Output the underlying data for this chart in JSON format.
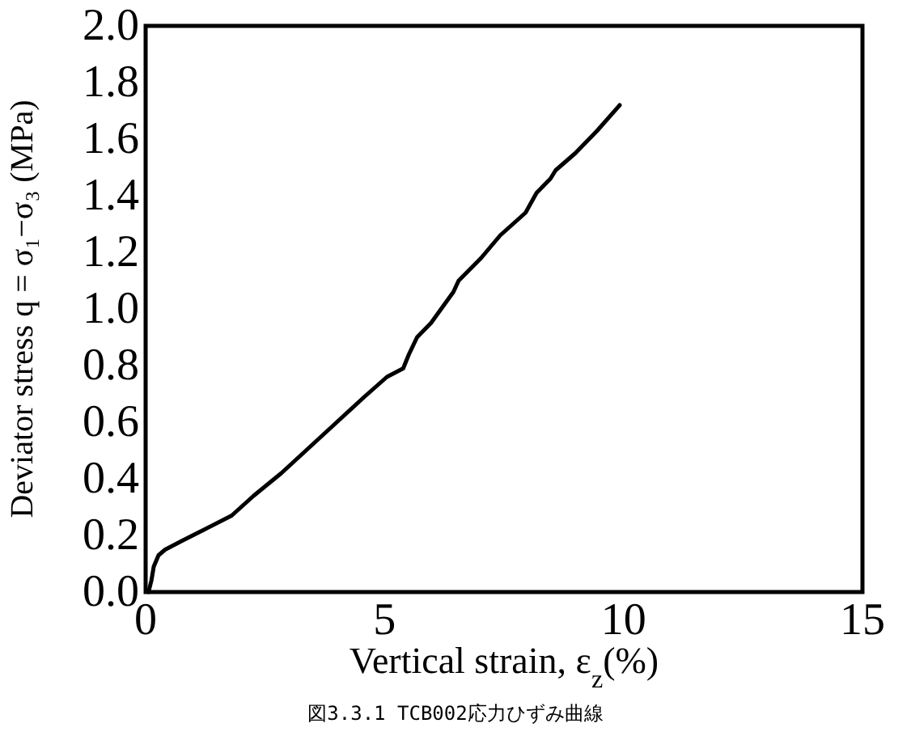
{
  "chart_data": {
    "type": "line",
    "xlabel": "Vertical strain, ε$_{z}$(%)",
    "ylabel": "Deviator stress q = σ₁−σ₃ (MPa)",
    "annotations": [
      "図3.3.1 TCB002応力ひずみ曲線"
    ],
    "xlim": [
      0,
      15
    ],
    "ylim": [
      0,
      2.0
    ],
    "xticks": [
      0,
      5,
      10,
      15
    ],
    "yticks": [
      {
        "value": 0,
        "label": "0.0"
      },
      {
        "value": 0.2,
        "label": "0.2"
      },
      {
        "value": 0.4,
        "label": "0.4"
      },
      {
        "value": 0.6,
        "label": "0.6"
      },
      {
        "value": 0.8,
        "label": "0.8"
      },
      {
        "value": 1.0,
        "label": "1.0"
      },
      {
        "value": 1.2,
        "label": "1.2"
      },
      {
        "value": 1.4,
        "label": "1.4"
      },
      {
        "value": 1.6,
        "label": "1.6"
      },
      {
        "value": 1.8,
        "label": "1.8"
      },
      {
        "value": 2.0,
        "label": "2.0"
      }
    ],
    "grid": false,
    "series": [
      {
        "color": "#000000",
        "x": [
          0.06,
          0.12,
          0.17,
          0.27,
          0.41,
          0.75,
          1.22,
          1.8,
          2.26,
          2.84,
          3.42,
          4.0,
          4.58,
          5.05,
          5.39,
          5.51,
          5.68,
          5.97,
          6.44,
          6.55,
          7.02,
          7.42,
          7.95,
          8.18,
          8.47,
          8.58,
          8.99,
          9.45,
          9.92
        ],
        "values": [
          0,
          0.04,
          0.09,
          0.13,
          0.15,
          0.18,
          0.22,
          0.27,
          0.34,
          0.42,
          0.51,
          0.6,
          0.69,
          0.76,
          0.79,
          0.84,
          0.9,
          0.95,
          1.06,
          1.1,
          1.18,
          1.26,
          1.34,
          1.41,
          1.46,
          1.49,
          1.55,
          1.63,
          1.72
        ]
      }
    ]
  }
}
